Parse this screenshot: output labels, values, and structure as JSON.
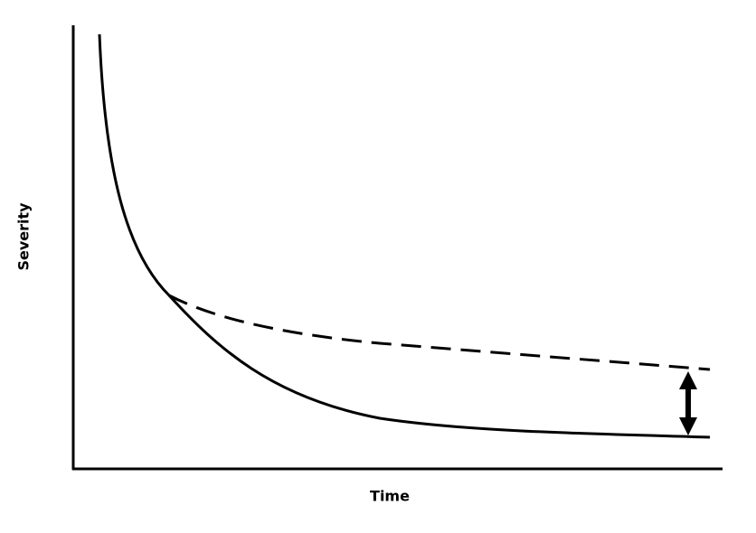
{
  "axes": {
    "x_label": "Time",
    "y_label": "Severity"
  }
}
